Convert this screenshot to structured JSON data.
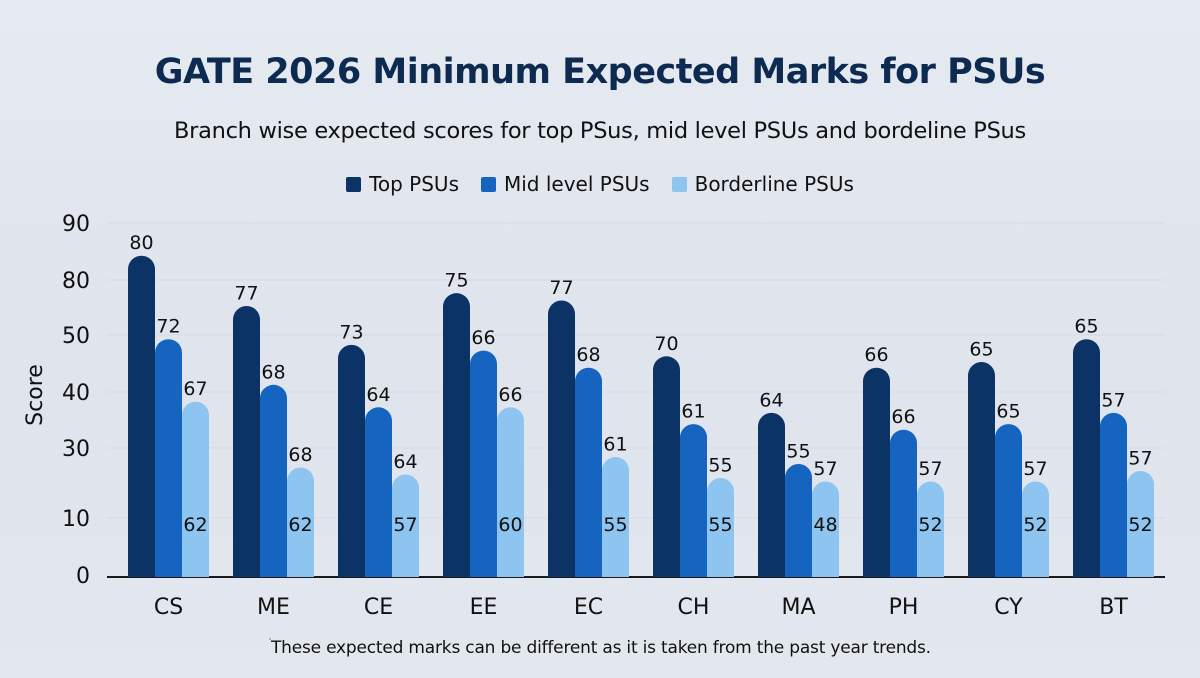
{
  "chart_data": {
    "type": "bar",
    "title": "GATE 2026 Minimum Expected Marks for PSUs",
    "subtitle": "Branch wise expected scores for top PSus, mid level PSUs and bordeline PSus",
    "xlabel": "",
    "ylabel": "Score",
    "y_ticks": [
      0,
      10,
      30,
      40,
      50,
      80,
      90
    ],
    "ylim": [
      0,
      90
    ],
    "grid": true,
    "legend_position": "top-center",
    "categories": [
      "CS",
      "ME",
      "CE",
      "EE",
      "EC",
      "CH",
      "MA",
      "PH",
      "CY",
      "BT"
    ],
    "series": [
      {
        "name": "Top PSUs",
        "color": "#0b3366",
        "values": [
          84,
          65,
          48,
          72,
          68,
          46,
          36,
          44,
          45,
          49
        ],
        "labels": [
          "80",
          "77",
          "73",
          "75",
          "77",
          "70",
          "64",
          "66",
          "65",
          "65"
        ]
      },
      {
        "name": "Mid level PSUs",
        "color": "#1565c0",
        "values": [
          49,
          41,
          37,
          47,
          44,
          34,
          25,
          33,
          34,
          36
        ],
        "labels": [
          "72",
          "68",
          "64",
          "66",
          "68",
          "61",
          "55",
          "66",
          "65",
          "57"
        ]
      },
      {
        "name": "Borderline PSUs",
        "color": "#8ec4f0",
        "values": [
          38,
          24,
          22,
          37,
          27,
          21,
          20,
          20,
          20,
          23
        ],
        "labels": [
          "67",
          "68",
          "64",
          "66",
          "61",
          "55",
          "57",
          "57",
          "57",
          "57"
        ],
        "inner_labels": [
          "62",
          "62",
          "57",
          "60",
          "55",
          "55",
          "48",
          "52",
          "52",
          "52"
        ]
      }
    ],
    "footnote": "These expected marks can be different as it is taken from the past year trends."
  }
}
